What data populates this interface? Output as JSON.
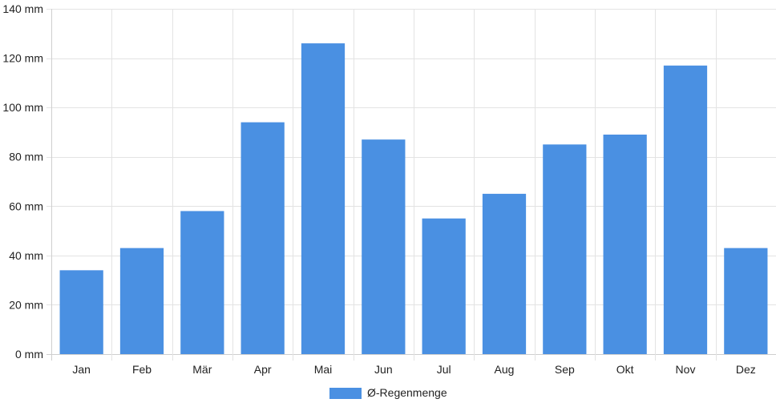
{
  "colors": {
    "bar": "#4a90e2",
    "grid": "#e3e3e3"
  },
  "chart_data": {
    "type": "bar",
    "categories": [
      "Jan",
      "Feb",
      "Mär",
      "Apr",
      "Mai",
      "Jun",
      "Jul",
      "Aug",
      "Sep",
      "Okt",
      "Nov",
      "Dez"
    ],
    "series": [
      {
        "name": "Ø-Regenmenge",
        "values": [
          34,
          43,
          58,
          94,
          126,
          87,
          55,
          65,
          85,
          89,
          117,
          43
        ]
      }
    ],
    "ylim": [
      0,
      140
    ],
    "yticks": [
      0,
      20,
      40,
      60,
      80,
      100,
      120,
      140
    ],
    "y_unit": "mm",
    "title": "",
    "xlabel": "",
    "ylabel": "",
    "grid": true,
    "legend_position": "bottom-center"
  }
}
